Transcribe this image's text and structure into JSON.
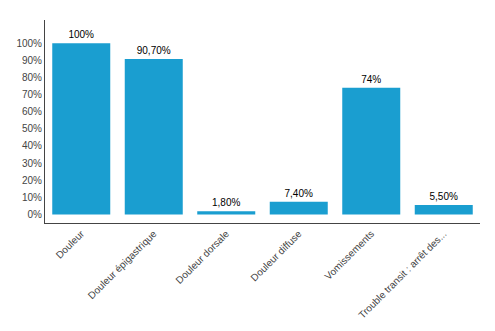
{
  "chart_data": {
    "type": "bar",
    "categories": [
      "Douleur",
      "Douleur épigastrique",
      "Douleur dorsale",
      "Douleur diffuse",
      "Vomissements",
      "Trouble transit : arrêt des..."
    ],
    "values": [
      100.0,
      90.7,
      1.8,
      7.4,
      74.0,
      5.5
    ],
    "value_labels": [
      "100%",
      "90,70%",
      "1,80%",
      "7,40%",
      "74%",
      "5,50%"
    ],
    "data_labels": true,
    "color": "#1A9ED0",
    "ylim": [
      -5,
      113.5
    ],
    "yticks": [
      {
        "value": 0,
        "label": "0%"
      },
      {
        "value": 10,
        "label": "10%"
      },
      {
        "value": 20,
        "label": "20%"
      },
      {
        "value": 30,
        "label": "30%"
      },
      {
        "value": 40,
        "label": "40%"
      },
      {
        "value": 50,
        "label": "50%"
      },
      {
        "value": 60,
        "label": "60%"
      },
      {
        "value": 70,
        "label": "70%"
      },
      {
        "value": 80,
        "label": "80%"
      },
      {
        "value": 90,
        "label": "90%"
      },
      {
        "value": 100,
        "label": "100%"
      }
    ],
    "grid": false
  }
}
